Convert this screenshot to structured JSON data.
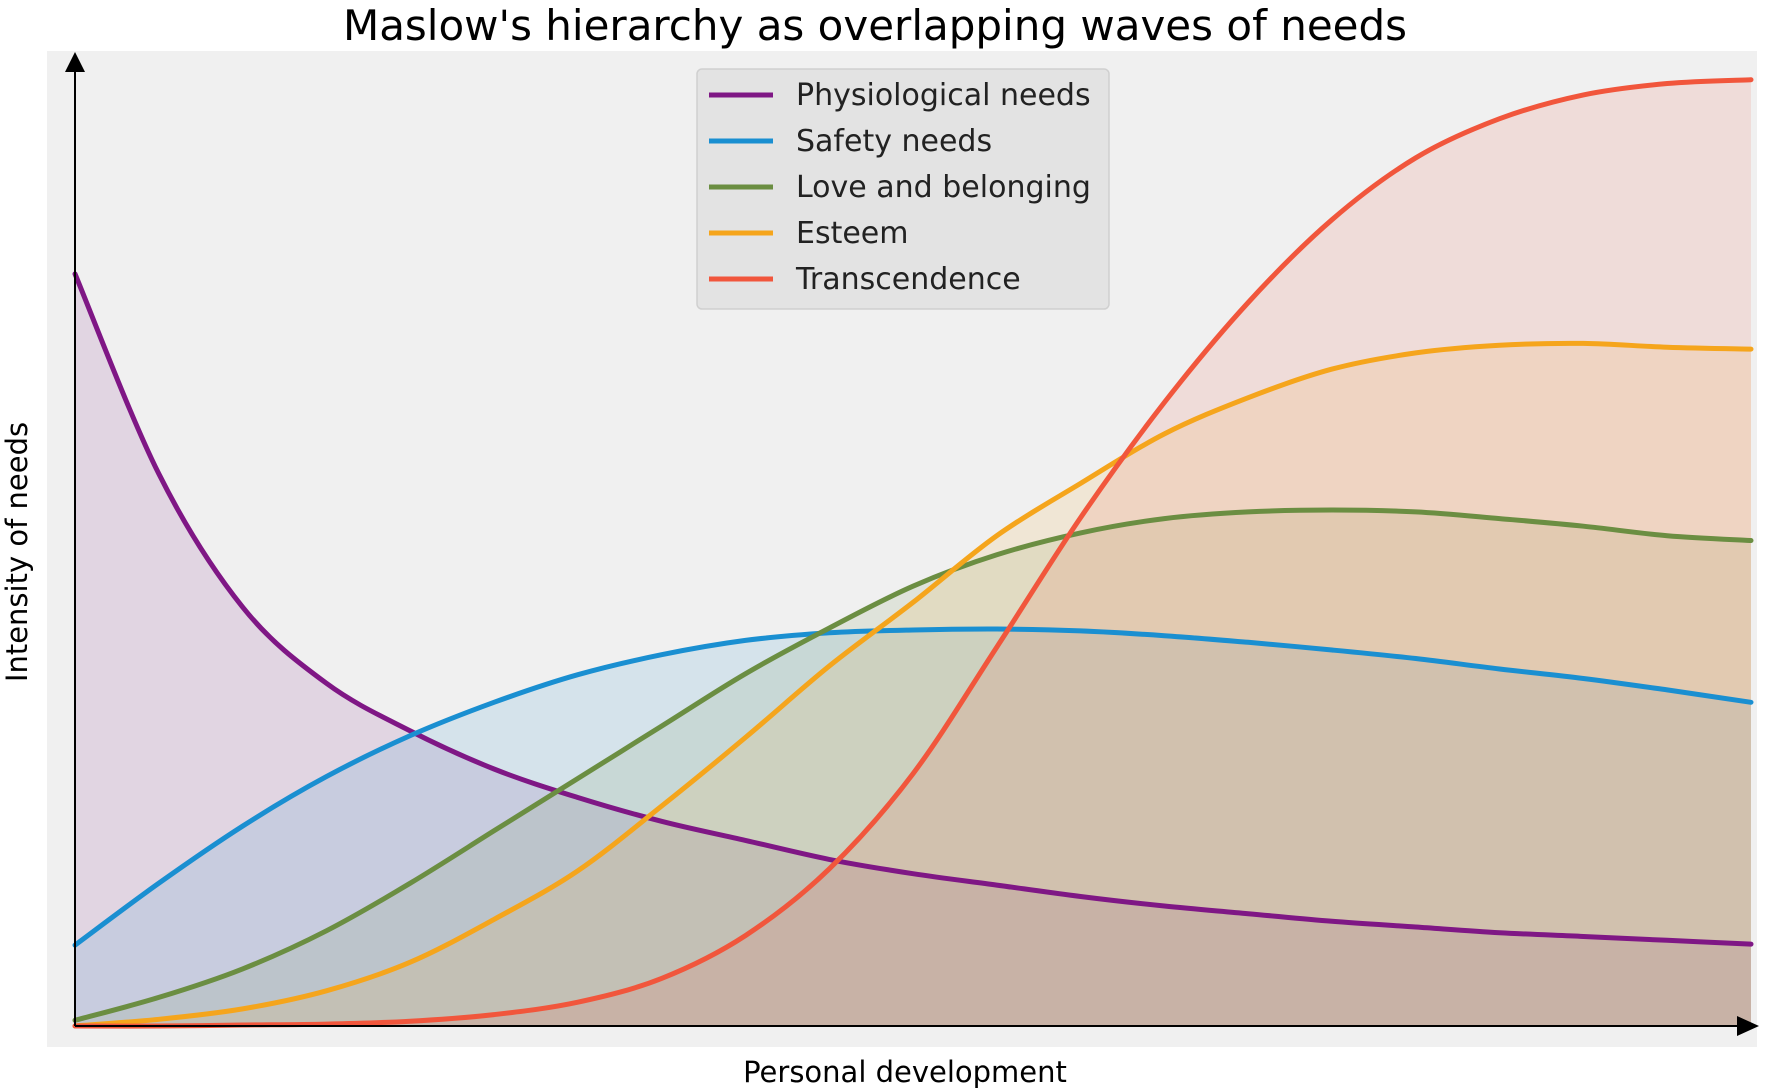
{
  "chart_data": {
    "type": "area",
    "title": "Maslow's hierarchy as overlapping waves of needs",
    "xlabel": "Personal development",
    "ylabel": "Intensity of needs",
    "xlim": [
      0,
      10
    ],
    "ylim": [
      0,
      1
    ],
    "grid": false,
    "axis_ticks": false,
    "legend_position": "top-center",
    "background_color": "#f0f0f0",
    "x": [
      0,
      0.5,
      1,
      1.5,
      2,
      2.5,
      3,
      3.5,
      4,
      4.5,
      5,
      5.5,
      6,
      6.5,
      7,
      7.5,
      8,
      8.5,
      9,
      9.5,
      10
    ],
    "series": [
      {
        "name": "Physiological needs",
        "color": "#7f1785",
        "values": [
          0.79,
          0.58,
          0.44,
          0.36,
          0.31,
          0.27,
          0.24,
          0.215,
          0.195,
          0.175,
          0.16,
          0.148,
          0.136,
          0.126,
          0.118,
          0.11,
          0.104,
          0.098,
          0.094,
          0.09,
          0.086
        ]
      },
      {
        "name": "Safety needs",
        "color": "#1a8fd1",
        "values": [
          0.085,
          0.15,
          0.21,
          0.262,
          0.305,
          0.34,
          0.369,
          0.39,
          0.405,
          0.413,
          0.416,
          0.417,
          0.415,
          0.41,
          0.403,
          0.395,
          0.386,
          0.375,
          0.365,
          0.353,
          0.34
        ]
      },
      {
        "name": "Love and belonging",
        "color": "#6b8e42",
        "values": [
          0.006,
          0.03,
          0.06,
          0.1,
          0.15,
          0.205,
          0.26,
          0.315,
          0.37,
          0.418,
          0.462,
          0.495,
          0.518,
          0.533,
          0.54,
          0.542,
          0.54,
          0.533,
          0.525,
          0.515,
          0.51
        ]
      },
      {
        "name": "Esteem",
        "color": "#f5a51c",
        "values": [
          0.0,
          0.007,
          0.018,
          0.037,
          0.067,
          0.112,
          0.163,
          0.231,
          0.303,
          0.378,
          0.445,
          0.515,
          0.57,
          0.622,
          0.66,
          0.69,
          0.707,
          0.715,
          0.717,
          0.713,
          0.711
        ]
      },
      {
        "name": "Transcendence",
        "color": "#f1563c",
        "values": [
          0.0,
          0.0,
          0.001,
          0.002,
          0.005,
          0.012,
          0.025,
          0.05,
          0.095,
          0.165,
          0.265,
          0.398,
          0.534,
          0.655,
          0.76,
          0.847,
          0.912,
          0.953,
          0.978,
          0.99,
          0.994
        ]
      }
    ]
  }
}
